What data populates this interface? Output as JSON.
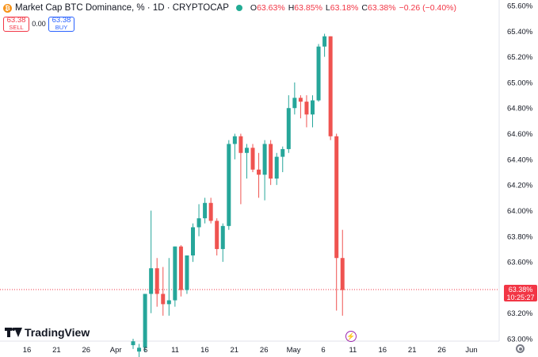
{
  "header": {
    "symbol_icon": "bitcoin-icon",
    "title": "Market Cap BTC Dominance, % · 1D · CRYPTOCAP",
    "open_label": "O",
    "open": "63.63%",
    "high_label": "H",
    "high": "63.85%",
    "low_label": "L",
    "low": "63.18%",
    "close_label": "C",
    "close": "63.38%",
    "change": "−0.26 (−0.40%)",
    "status_color": "#22ab94"
  },
  "trade": {
    "sell_price": "63.38",
    "sell_label": "SELL",
    "spread": "0.00",
    "buy_price": "63.38",
    "buy_label": "BUY"
  },
  "last_price": {
    "value": "63.38%",
    "countdown": "10:25:27"
  },
  "logo": {
    "text": "TradingView"
  },
  "colors": {
    "up": "#26a69a",
    "down": "#ef5350",
    "price_line": "#f23645",
    "buy": "#2962ff"
  },
  "chart_data": {
    "type": "candlestick",
    "y_axis": {
      "range": [
        63.0,
        65.6
      ],
      "ticks": [
        "63.00%",
        "63.20%",
        "63.40%",
        "63.60%",
        "63.80%",
        "64.00%",
        "64.20%",
        "64.40%",
        "64.60%",
        "64.80%",
        "65.00%",
        "65.20%",
        "65.40%",
        "65.60%"
      ]
    },
    "x_axis": {
      "labels": [
        "16",
        "21",
        "26",
        "Apr",
        "6",
        "11",
        "16",
        "21",
        "26",
        "May",
        "6",
        "11",
        "16",
        "21",
        "26",
        "Jun"
      ]
    },
    "grid": false,
    "candles": [
      {
        "o": 62.95,
        "h": 63.0,
        "l": 62.92,
        "c": 62.98
      },
      {
        "o": 62.9,
        "h": 62.96,
        "l": 62.85,
        "c": 62.93
      },
      {
        "o": 62.93,
        "h": 63.35,
        "l": 62.9,
        "c": 63.35
      },
      {
        "o": 63.35,
        "h": 64.0,
        "l": 63.2,
        "c": 63.55
      },
      {
        "o": 63.55,
        "h": 63.63,
        "l": 63.25,
        "c": 63.35
      },
      {
        "o": 63.35,
        "h": 63.56,
        "l": 63.18,
        "c": 63.27
      },
      {
        "o": 63.27,
        "h": 63.63,
        "l": 63.18,
        "c": 63.3
      },
      {
        "o": 63.3,
        "h": 63.72,
        "l": 63.25,
        "c": 63.72
      },
      {
        "o": 63.72,
        "h": 63.73,
        "l": 63.33,
        "c": 63.38
      },
      {
        "o": 63.38,
        "h": 63.65,
        "l": 63.35,
        "c": 63.65
      },
      {
        "o": 63.65,
        "h": 63.9,
        "l": 63.6,
        "c": 63.87
      },
      {
        "o": 63.87,
        "h": 64.05,
        "l": 63.8,
        "c": 63.94
      },
      {
        "o": 63.94,
        "h": 64.1,
        "l": 63.9,
        "c": 64.06
      },
      {
        "o": 64.06,
        "h": 64.1,
        "l": 63.9,
        "c": 63.92
      },
      {
        "o": 63.92,
        "h": 63.94,
        "l": 63.65,
        "c": 63.7
      },
      {
        "o": 63.7,
        "h": 63.9,
        "l": 63.6,
        "c": 63.88
      },
      {
        "o": 63.88,
        "h": 64.55,
        "l": 63.85,
        "c": 64.52
      },
      {
        "o": 64.52,
        "h": 64.6,
        "l": 64.4,
        "c": 64.58
      },
      {
        "o": 64.58,
        "h": 64.6,
        "l": 64.05,
        "c": 64.45
      },
      {
        "o": 64.45,
        "h": 64.52,
        "l": 64.25,
        "c": 64.49
      },
      {
        "o": 64.49,
        "h": 64.52,
        "l": 64.3,
        "c": 64.32
      },
      {
        "o": 64.32,
        "h": 64.45,
        "l": 64.1,
        "c": 64.28
      },
      {
        "o": 64.28,
        "h": 64.55,
        "l": 64.08,
        "c": 64.52
      },
      {
        "o": 64.52,
        "h": 64.55,
        "l": 64.2,
        "c": 64.25
      },
      {
        "o": 64.25,
        "h": 64.45,
        "l": 64.2,
        "c": 64.42
      },
      {
        "o": 64.42,
        "h": 64.5,
        "l": 64.3,
        "c": 64.48
      },
      {
        "o": 64.48,
        "h": 64.9,
        "l": 64.45,
        "c": 64.8
      },
      {
        "o": 64.8,
        "h": 65.0,
        "l": 64.75,
        "c": 64.88
      },
      {
        "o": 64.88,
        "h": 64.9,
        "l": 64.72,
        "c": 64.85
      },
      {
        "o": 64.85,
        "h": 64.9,
        "l": 64.65,
        "c": 64.75
      },
      {
        "o": 64.75,
        "h": 64.9,
        "l": 64.65,
        "c": 64.86
      },
      {
        "o": 64.86,
        "h": 65.3,
        "l": 64.85,
        "c": 65.28
      },
      {
        "o": 65.28,
        "h": 65.38,
        "l": 65.2,
        "c": 65.36
      },
      {
        "o": 65.36,
        "h": 65.36,
        "l": 64.55,
        "c": 64.58
      },
      {
        "o": 64.58,
        "h": 64.6,
        "l": 63.22,
        "c": 63.63
      },
      {
        "o": 63.63,
        "h": 63.85,
        "l": 63.18,
        "c": 63.38
      }
    ]
  }
}
